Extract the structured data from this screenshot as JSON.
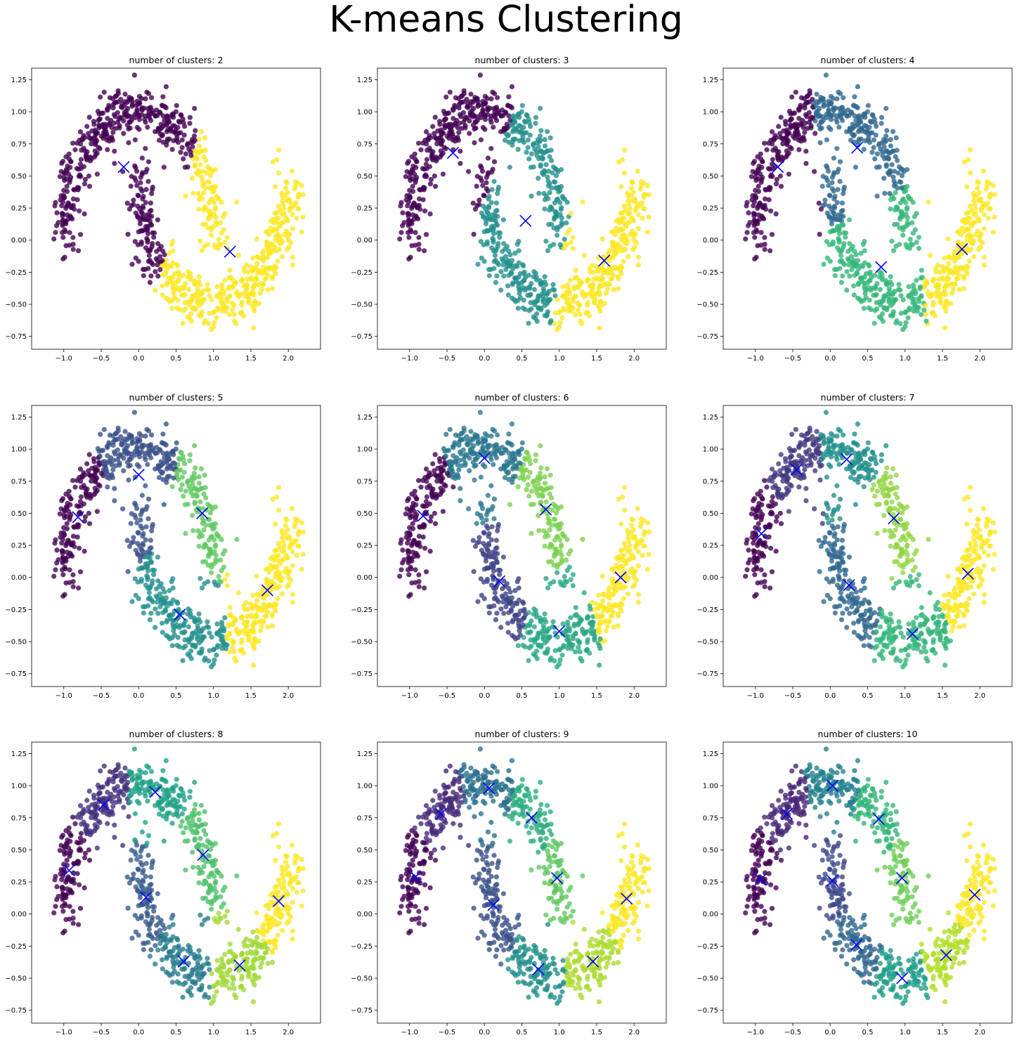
{
  "figure": {
    "suptitle": "K-means Clustering",
    "marker_color": "#0000ff",
    "x_ticks": [
      -1.0,
      -0.5,
      0.0,
      0.5,
      1.0,
      1.5,
      2.0
    ],
    "y_ticks": [
      -0.75,
      -0.5,
      -0.25,
      0.0,
      0.25,
      0.5,
      0.75,
      1.0,
      1.25
    ],
    "x_tick_labels": [
      "−1.0",
      "−0.5",
      "0.0",
      "0.5",
      "1.0",
      "1.5",
      "2.0"
    ],
    "y_tick_labels": [
      "−0.75",
      "−0.50",
      "−0.25",
      "0.00",
      "0.25",
      "0.50",
      "0.75",
      "1.00",
      "1.25"
    ],
    "xlim": [
      -1.43,
      2.43
    ],
    "ylim": [
      -0.85,
      1.34
    ],
    "colormap": "viridis"
  },
  "chart_data": [
    {
      "type": "scatter",
      "title": "number of clusters: 2",
      "k": 2,
      "centroids": [
        [
          -0.2,
          0.57
        ],
        [
          1.22,
          -0.09
        ]
      ]
    },
    {
      "type": "scatter",
      "title": "number of clusters: 3",
      "k": 3,
      "centroids": [
        [
          -0.42,
          0.68
        ],
        [
          0.55,
          0.15
        ],
        [
          1.6,
          -0.16
        ]
      ]
    },
    {
      "type": "scatter",
      "title": "number of clusters: 4",
      "k": 4,
      "centroids": [
        [
          -0.7,
          0.57
        ],
        [
          0.36,
          0.72
        ],
        [
          0.68,
          -0.21
        ],
        [
          1.76,
          -0.07
        ]
      ]
    },
    {
      "type": "scatter",
      "title": "number of clusters: 5",
      "k": 5,
      "centroids": [
        [
          -0.81,
          0.47
        ],
        [
          0.0,
          0.8
        ],
        [
          0.85,
          0.5
        ],
        [
          0.55,
          -0.29
        ],
        [
          1.72,
          -0.1
        ]
      ]
    },
    {
      "type": "scatter",
      "title": "number of clusters: 6",
      "k": 6,
      "centroids": [
        [
          -0.82,
          0.48
        ],
        [
          0.0,
          0.93
        ],
        [
          0.82,
          0.53
        ],
        [
          0.2,
          -0.03
        ],
        [
          1.0,
          -0.42
        ],
        [
          1.82,
          0.0
        ]
      ]
    },
    {
      "type": "scatter",
      "title": "number of clusters: 7",
      "k": 7,
      "centroids": [
        [
          -0.92,
          0.34
        ],
        [
          -0.45,
          0.84
        ],
        [
          0.22,
          0.92
        ],
        [
          0.85,
          0.46
        ],
        [
          0.25,
          -0.06
        ],
        [
          1.1,
          -0.44
        ],
        [
          1.84,
          0.03
        ]
      ]
    },
    {
      "type": "scatter",
      "title": "number of clusters: 8",
      "k": 8,
      "centroids": [
        [
          -0.93,
          0.34
        ],
        [
          -0.47,
          0.85
        ],
        [
          0.22,
          0.95
        ],
        [
          0.86,
          0.46
        ],
        [
          0.1,
          0.13
        ],
        [
          0.6,
          -0.37
        ],
        [
          1.35,
          -0.4
        ],
        [
          1.87,
          0.1
        ]
      ]
    },
    {
      "type": "scatter",
      "title": "number of clusters: 9",
      "k": 9,
      "centroids": [
        [
          -0.92,
          0.29
        ],
        [
          -0.58,
          0.78
        ],
        [
          0.06,
          0.98
        ],
        [
          0.63,
          0.75
        ],
        [
          0.12,
          0.07
        ],
        [
          0.97,
          0.28
        ],
        [
          0.72,
          -0.43
        ],
        [
          1.45,
          -0.37
        ],
        [
          1.9,
          0.12
        ]
      ]
    },
    {
      "type": "scatter",
      "title": "number of clusters: 10",
      "k": 10,
      "centroids": [
        [
          -0.93,
          0.27
        ],
        [
          -0.58,
          0.78
        ],
        [
          0.03,
          1.0
        ],
        [
          0.65,
          0.74
        ],
        [
          0.03,
          0.26
        ],
        [
          0.96,
          0.28
        ],
        [
          0.35,
          -0.24
        ],
        [
          0.96,
          -0.5
        ],
        [
          1.55,
          -0.32
        ],
        [
          1.93,
          0.15
        ]
      ]
    }
  ]
}
